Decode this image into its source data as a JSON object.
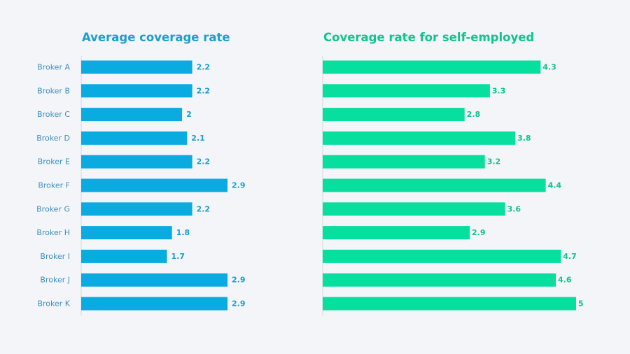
{
  "colors": {
    "background": "#f4f5f9",
    "left_bar": "#0aabe0",
    "left_text": "#1a9fcf",
    "right_bar": "#07df9e",
    "right_text": "#10c48e",
    "category_text": "#3d8fbf",
    "axis": "#d6d8de"
  },
  "chart_data": [
    {
      "type": "bar",
      "orientation": "horizontal",
      "title": "Average coverage rate",
      "categories": [
        "Broker A",
        "Broker B",
        "Broker C",
        "Broker D",
        "Broker E",
        "Broker F",
        "Broker G",
        "Broker H",
        "Broker I",
        "Broker J",
        "Broker K"
      ],
      "values": [
        2.2,
        2.2,
        2,
        2.1,
        2.2,
        2.9,
        2.2,
        1.8,
        1.7,
        2.9,
        2.9
      ],
      "value_labels": [
        "2.2",
        "2.2",
        "2",
        "2.1",
        "2.2",
        "2.9",
        "2.2",
        "1.8",
        "1.7",
        "2.9",
        "2.9"
      ],
      "xlim": [
        0,
        2.9
      ],
      "grid": false,
      "legend": "none"
    },
    {
      "type": "bar",
      "orientation": "horizontal",
      "title": "Coverage rate for self-employed",
      "categories": [
        "Broker A",
        "Broker B",
        "Broker C",
        "Broker D",
        "Broker E",
        "Broker F",
        "Broker G",
        "Broker H",
        "Broker I",
        "Broker J",
        "Broker K"
      ],
      "values": [
        4.3,
        3.3,
        2.8,
        3.8,
        3.2,
        4.4,
        3.6,
        2.9,
        4.7,
        4.6,
        5
      ],
      "value_labels": [
        "4.3",
        "3.3",
        "2.8",
        "3.8",
        "3.2",
        "4.4",
        "3.6",
        "2.9",
        "4.7",
        "4.6",
        "5"
      ],
      "xlim": [
        0,
        5
      ],
      "grid": false,
      "legend": "none"
    }
  ]
}
